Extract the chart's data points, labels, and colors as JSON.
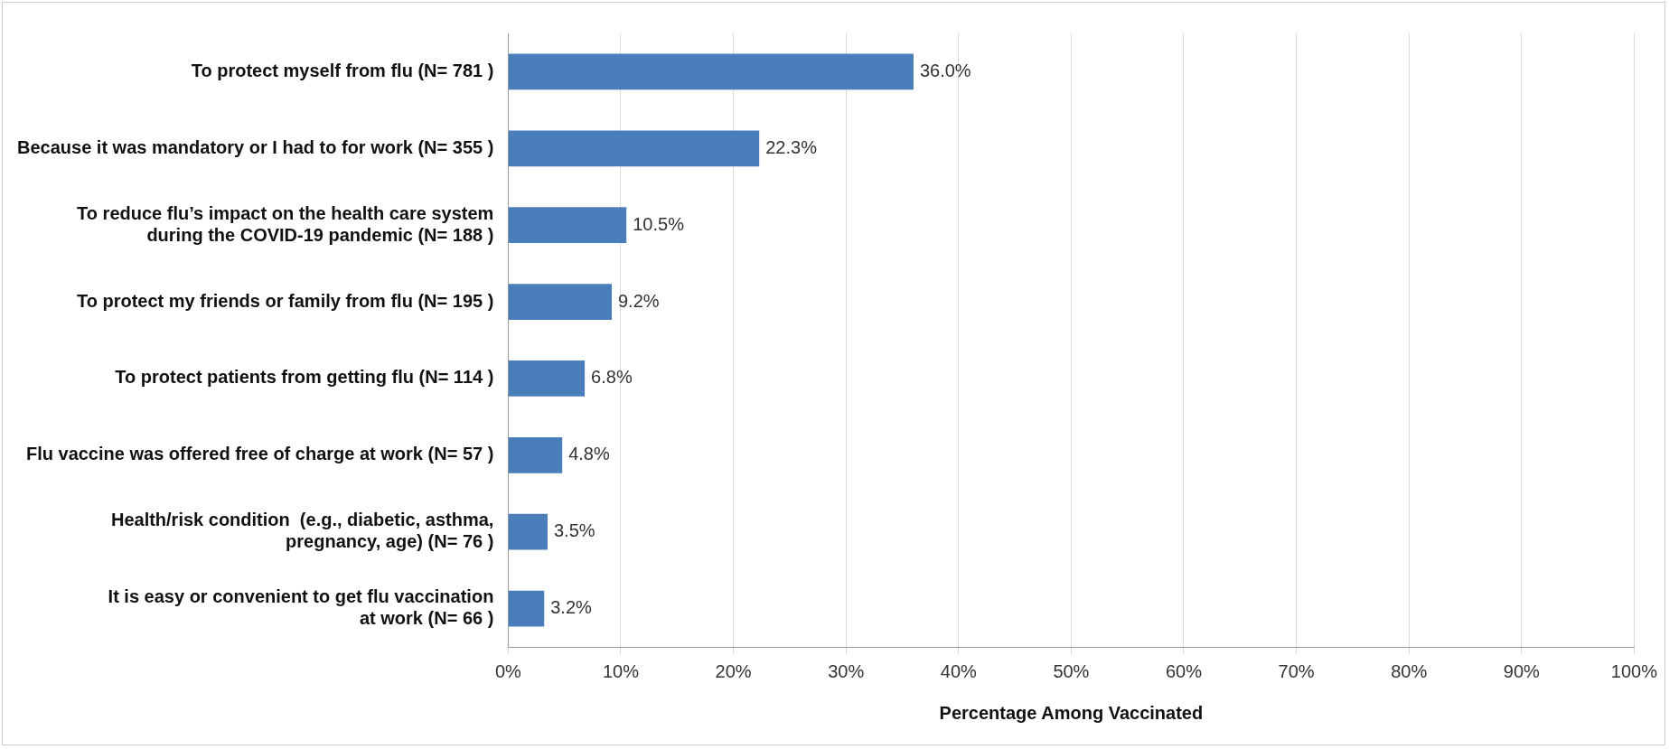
{
  "chart_data": {
    "type": "bar",
    "orientation": "horizontal",
    "xlabel": "Percentage Among Vaccinated",
    "categories": [
      "To protect myself from flu (N= 781 )",
      "Because it was mandatory or I had to for work (N= 355 )",
      "To reduce flu’s impact on the health care system\nduring the COVID-19 pandemic (N= 188 )",
      "To protect my friends or family from flu (N= 195 )",
      "To protect patients from getting flu (N= 114 )",
      "Flu vaccine was offered free of charge at work (N= 57 )",
      "Health/risk condition  (e.g., diabetic, asthma,\npregnancy, age) (N= 76 )",
      "It is easy or convenient to get flu vaccination\nat work (N= 66 )"
    ],
    "values": [
      36.0,
      22.3,
      10.5,
      9.2,
      6.8,
      4.8,
      3.5,
      3.2
    ],
    "value_labels": [
      "36.0%",
      "22.3%",
      "10.5%",
      "9.2%",
      "6.8%",
      "4.8%",
      "3.5%",
      "3.2%"
    ],
    "color": "#4a7ebb",
    "xlim": [
      0,
      100
    ],
    "xticks": [
      {
        "value": 0,
        "label": "0%"
      },
      {
        "value": 10,
        "label": "10%"
      },
      {
        "value": 20,
        "label": "20%"
      },
      {
        "value": 30,
        "label": "30%"
      },
      {
        "value": 40,
        "label": "40%"
      },
      {
        "value": 50,
        "label": "50%"
      },
      {
        "value": 60,
        "label": "60%"
      },
      {
        "value": 70,
        "label": "70%"
      },
      {
        "value": 80,
        "label": "80%"
      },
      {
        "value": 90,
        "label": "90%"
      },
      {
        "value": 100,
        "label": "100%"
      }
    ],
    "grid": "x",
    "legend": false
  }
}
